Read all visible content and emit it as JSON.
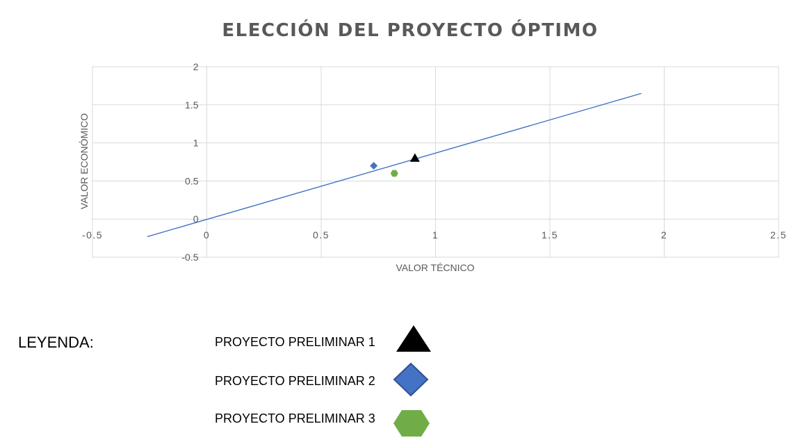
{
  "chart_data": {
    "type": "scatter",
    "title": "ELECCIÓN DEL PROYECTO ÓPTIMO",
    "xlabel": "VALOR TÉCNICO",
    "ylabel": "VALOR ECONÓMICO",
    "xlim": [
      -0.5,
      2.5
    ],
    "ylim": [
      -0.5,
      2
    ],
    "xticks": [
      "-0.5",
      "0",
      "0.5",
      "1",
      "1.5",
      "2",
      "2.5"
    ],
    "yticks": [
      "-0.5",
      "0",
      "0.5",
      "1",
      "1.5",
      "2"
    ],
    "grid": true,
    "series": [
      {
        "name": "PROYECTO PRELIMINAR 1",
        "marker": "triangle",
        "color": "#000000",
        "x": [
          0.91
        ],
        "y": [
          0.8
        ]
      },
      {
        "name": "PROYECTO PRELIMINAR 2",
        "marker": "diamond",
        "color": "#4472C4",
        "x": [
          0.73
        ],
        "y": [
          0.7
        ]
      },
      {
        "name": "PROYECTO PRELIMINAR 3",
        "marker": "hexagon",
        "color": "#70AD47",
        "x": [
          0.82
        ],
        "y": [
          0.6
        ]
      }
    ],
    "line": {
      "color": "#4472C4",
      "x": [
        -0.26,
        1.9
      ],
      "y": [
        -0.23,
        1.65
      ]
    }
  },
  "legend": {
    "heading": "LEYENDA:",
    "items": [
      {
        "label": "PROYECTO PRELIMINAR 1",
        "marker": "triangle",
        "color": "#000000"
      },
      {
        "label": "PROYECTO PRELIMINAR 2",
        "marker": "diamond",
        "color": "#4472C4"
      },
      {
        "label": "PROYECTO PRELIMINAR 3",
        "marker": "hexagon",
        "color": "#70AD47"
      }
    ]
  }
}
